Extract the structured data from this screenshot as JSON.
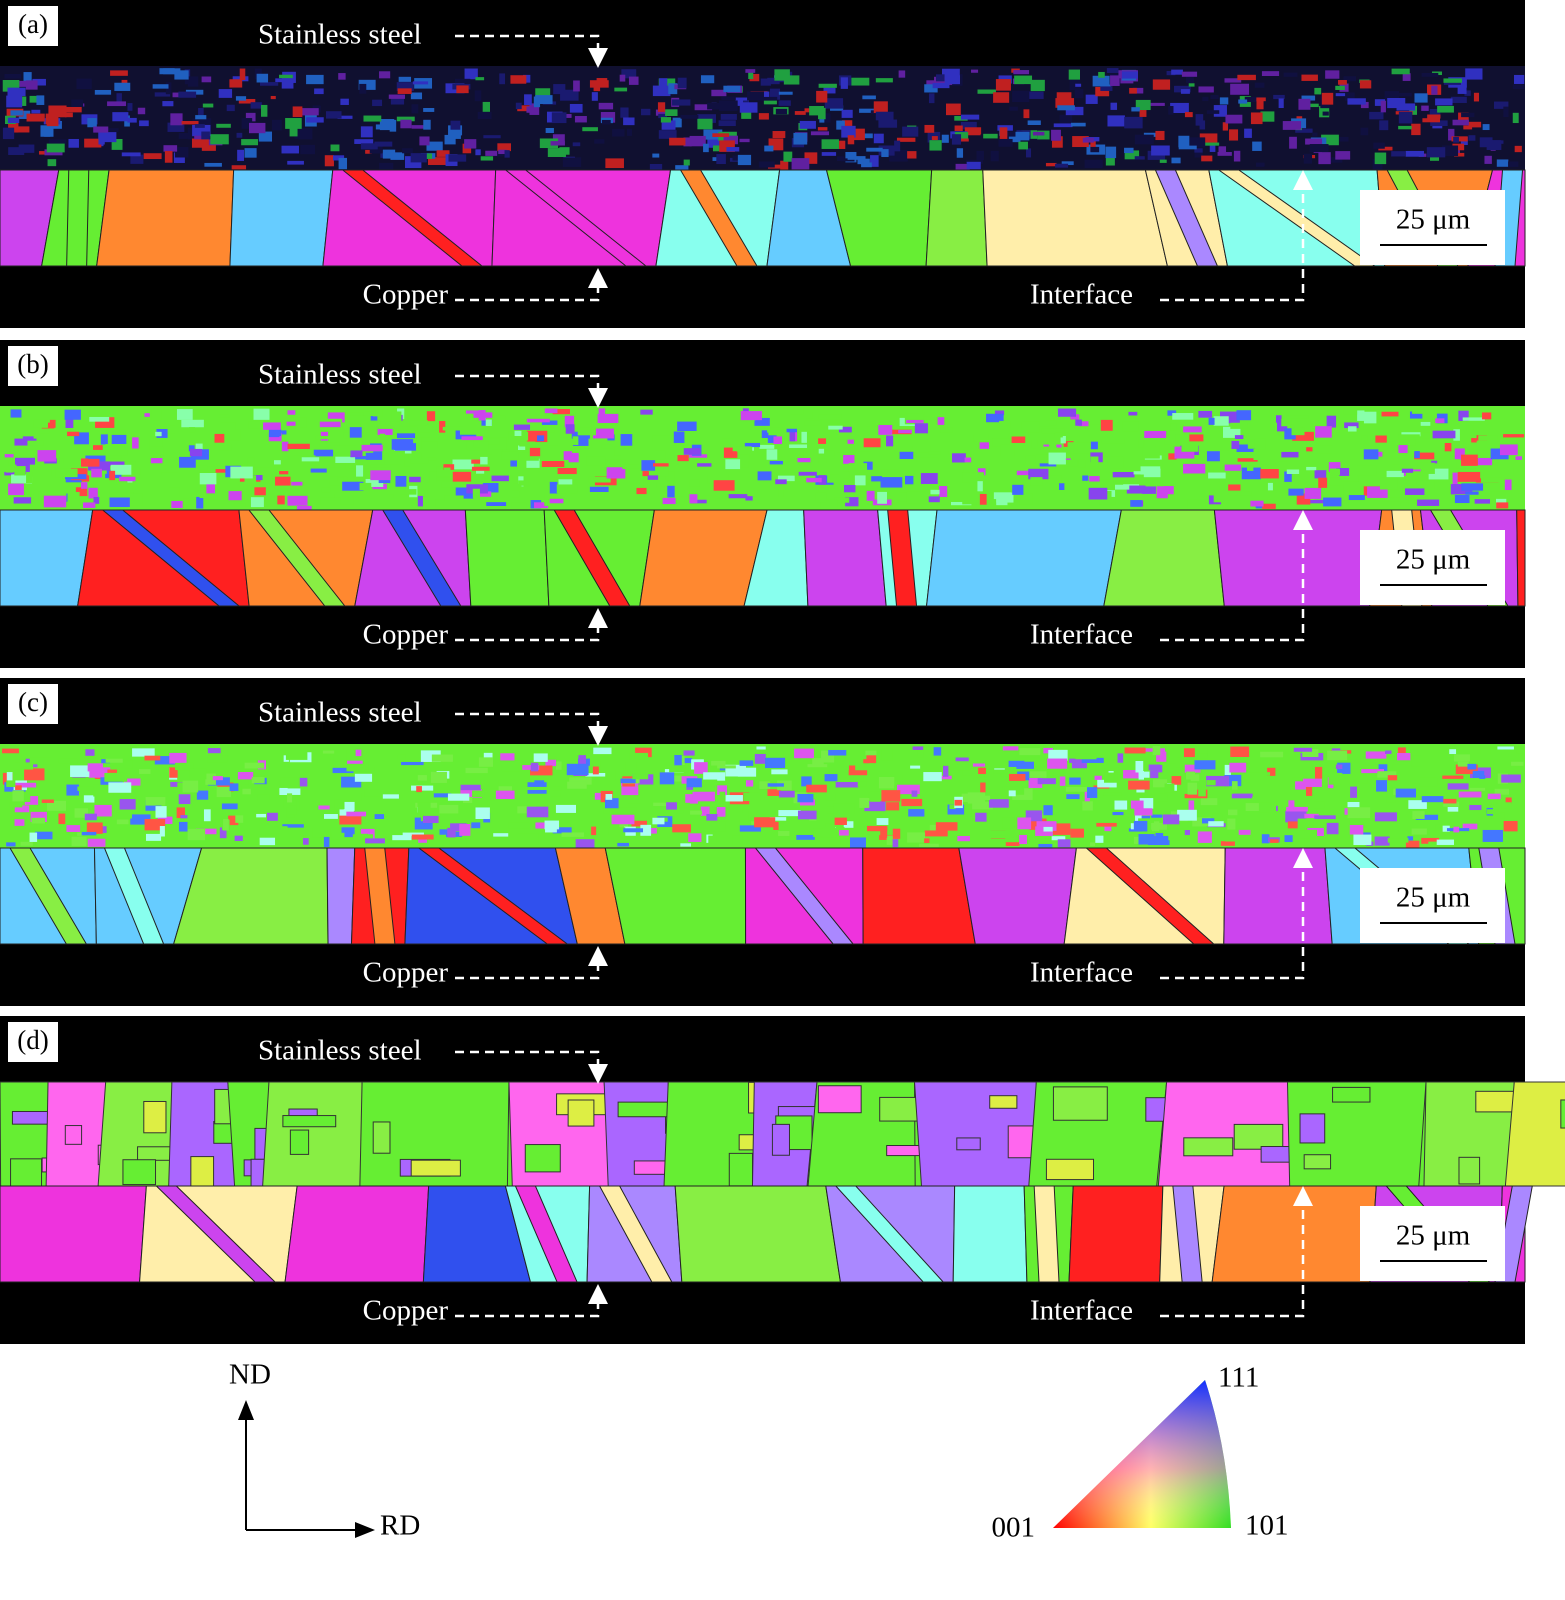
{
  "panels": [
    {
      "label": "(a)",
      "top_label": "Stainless steel",
      "bottom_label": "Copper",
      "interface_label": "Interface",
      "scale_bar": "25 μm"
    },
    {
      "label": "(b)",
      "top_label": "Stainless steel",
      "bottom_label": "Copper",
      "interface_label": "Interface",
      "scale_bar": "25 μm"
    },
    {
      "label": "(c)",
      "top_label": "Stainless steel",
      "bottom_label": "Copper",
      "interface_label": "Interface",
      "scale_bar": "25 μm"
    },
    {
      "label": "(d)",
      "top_label": "Stainless steel",
      "bottom_label": "Copper",
      "interface_label": "Interface",
      "scale_bar": "25 μm"
    }
  ],
  "axes": {
    "nd": "ND",
    "rd": "RD"
  },
  "ipf_legend": {
    "top": "111",
    "left": "001",
    "right": "101"
  }
}
